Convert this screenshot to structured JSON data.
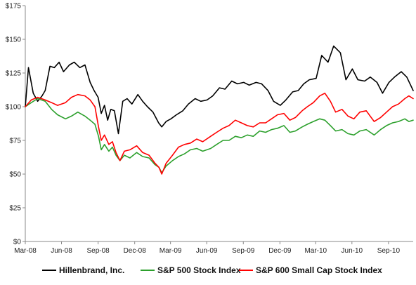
{
  "chart_data": {
    "type": "line",
    "title": "",
    "xlabel": "",
    "ylabel": "",
    "ylim": [
      0,
      175
    ],
    "y_ticks": [
      0,
      25,
      50,
      75,
      100,
      125,
      150,
      175
    ],
    "y_tick_labels": [
      "$0",
      "$25",
      "$50",
      "$75",
      "$100",
      "$125",
      "$150",
      "$175"
    ],
    "x_ticks": [
      "Mar-08",
      "Jun-08",
      "Sep-08",
      "Dec-08",
      "Mar-09",
      "Jun-09",
      "Sep-09",
      "Dec-09",
      "Mar-10",
      "Jun-10",
      "Sep-10"
    ],
    "xlim": [
      "2008-03-31",
      "2010-12-01"
    ],
    "grid": false,
    "legend_position": "bottom",
    "series": [
      {
        "name": "Hillenbrand, Inc.",
        "color": "#000000",
        "x": [
          "2008-03-31",
          "2008-04-08",
          "2008-04-20",
          "2008-05-01",
          "2008-05-12",
          "2008-05-20",
          "2008-06-01",
          "2008-06-12",
          "2008-06-24",
          "2008-07-05",
          "2008-07-20",
          "2008-08-01",
          "2008-08-15",
          "2008-08-28",
          "2008-09-10",
          "2008-09-20",
          "2008-09-30",
          "2008-10-08",
          "2008-10-16",
          "2008-10-24",
          "2008-11-01",
          "2008-11-10",
          "2008-11-20",
          "2008-12-01",
          "2008-12-12",
          "2008-12-24",
          "2009-01-08",
          "2009-01-20",
          "2009-02-01",
          "2009-02-15",
          "2009-03-01",
          "2009-03-09",
          "2009-03-20",
          "2009-04-01",
          "2009-04-15",
          "2009-05-01",
          "2009-05-15",
          "2009-06-01",
          "2009-06-15",
          "2009-07-01",
          "2009-07-15",
          "2009-08-01",
          "2009-08-15",
          "2009-09-01",
          "2009-09-15",
          "2009-10-01",
          "2009-10-15",
          "2009-11-01",
          "2009-11-15",
          "2009-12-01",
          "2009-12-15",
          "2010-01-01",
          "2010-01-15",
          "2010-02-01",
          "2010-02-15",
          "2010-03-01",
          "2010-03-15",
          "2010-04-01",
          "2010-04-15",
          "2010-05-01",
          "2010-05-15",
          "2010-06-01",
          "2010-06-15",
          "2010-07-01",
          "2010-07-15",
          "2010-08-01",
          "2010-08-15",
          "2010-09-01",
          "2010-09-15",
          "2010-10-01",
          "2010-10-15",
          "2010-11-01",
          "2010-11-15",
          "2010-12-01"
        ],
        "values": [
          100,
          129,
          110,
          104,
          108,
          112,
          130,
          129,
          133,
          126,
          131,
          133,
          129,
          131,
          118,
          112,
          107,
          95,
          101,
          90,
          98,
          97,
          80,
          104,
          106,
          102,
          109,
          104,
          100,
          96,
          88,
          85,
          89,
          91,
          94,
          97,
          102,
          106,
          104,
          105,
          108,
          114,
          113,
          119,
          117,
          118,
          116,
          118,
          117,
          112,
          104,
          101,
          105,
          111,
          112,
          117,
          120,
          121,
          138,
          133,
          145,
          140,
          120,
          128,
          120,
          119,
          122,
          118,
          110,
          118,
          122,
          126,
          122,
          112
        ]
      },
      {
        "name": "S&P 500 Stock Index",
        "color": "#2ca02c",
        "x": [
          "2008-03-31",
          "2008-04-15",
          "2008-05-01",
          "2008-05-20",
          "2008-06-05",
          "2008-06-20",
          "2008-07-10",
          "2008-07-25",
          "2008-08-10",
          "2008-08-28",
          "2008-09-10",
          "2008-09-22",
          "2008-10-01",
          "2008-10-08",
          "2008-10-16",
          "2008-10-27",
          "2008-11-05",
          "2008-11-14",
          "2008-11-24",
          "2008-12-05",
          "2008-12-19",
          "2009-01-05",
          "2009-01-20",
          "2009-02-05",
          "2009-02-20",
          "2009-03-02",
          "2009-03-09",
          "2009-03-20",
          "2009-04-05",
          "2009-04-20",
          "2009-05-05",
          "2009-05-20",
          "2009-06-05",
          "2009-06-20",
          "2009-07-10",
          "2009-07-25",
          "2009-08-10",
          "2009-08-25",
          "2009-09-10",
          "2009-09-25",
          "2009-10-10",
          "2009-10-25",
          "2009-11-10",
          "2009-11-25",
          "2009-12-10",
          "2009-12-25",
          "2010-01-10",
          "2010-01-25",
          "2010-02-08",
          "2010-02-25",
          "2010-03-10",
          "2010-03-25",
          "2010-04-10",
          "2010-04-23",
          "2010-05-07",
          "2010-05-20",
          "2010-06-05",
          "2010-06-20",
          "2010-07-05",
          "2010-07-20",
          "2010-08-05",
          "2010-08-25",
          "2010-09-10",
          "2010-09-25",
          "2010-10-10",
          "2010-10-25",
          "2010-11-10",
          "2010-11-20",
          "2010-12-01"
        ],
        "values": [
          100,
          103,
          106,
          104,
          98,
          94,
          91,
          93,
          96,
          93,
          90,
          87,
          78,
          68,
          72,
          67,
          70,
          64,
          60,
          64,
          62,
          66,
          63,
          62,
          57,
          55,
          51,
          56,
          60,
          63,
          65,
          68,
          69,
          67,
          69,
          72,
          75,
          75,
          78,
          77,
          79,
          78,
          82,
          81,
          83,
          84,
          86,
          81,
          82,
          85,
          87,
          89,
          91,
          90,
          86,
          82,
          83,
          80,
          79,
          82,
          83,
          79,
          83,
          86,
          88,
          89,
          91,
          89,
          90
        ]
      },
      {
        "name": "S&P 600 Small Cap Stock Index",
        "color": "#ff0000",
        "x": [
          "2008-03-31",
          "2008-04-15",
          "2008-05-01",
          "2008-05-20",
          "2008-06-05",
          "2008-06-20",
          "2008-07-10",
          "2008-07-25",
          "2008-08-10",
          "2008-08-28",
          "2008-09-10",
          "2008-09-22",
          "2008-10-01",
          "2008-10-08",
          "2008-10-16",
          "2008-10-27",
          "2008-11-05",
          "2008-11-14",
          "2008-11-24",
          "2008-12-05",
          "2008-12-19",
          "2009-01-05",
          "2009-01-20",
          "2009-02-05",
          "2009-02-20",
          "2009-03-02",
          "2009-03-09",
          "2009-03-20",
          "2009-04-05",
          "2009-04-20",
          "2009-05-05",
          "2009-05-20",
          "2009-06-05",
          "2009-06-20",
          "2009-07-10",
          "2009-07-25",
          "2009-08-10",
          "2009-08-25",
          "2009-09-10",
          "2009-09-25",
          "2009-10-10",
          "2009-10-25",
          "2009-11-10",
          "2009-11-25",
          "2009-12-10",
          "2009-12-25",
          "2010-01-10",
          "2010-01-25",
          "2010-02-08",
          "2010-02-25",
          "2010-03-10",
          "2010-03-25",
          "2010-04-10",
          "2010-04-23",
          "2010-05-07",
          "2010-05-20",
          "2010-06-05",
          "2010-06-20",
          "2010-07-05",
          "2010-07-20",
          "2010-08-05",
          "2010-08-25",
          "2010-09-10",
          "2010-09-25",
          "2010-10-10",
          "2010-10-25",
          "2010-11-10",
          "2010-11-20",
          "2010-12-01"
        ],
        "values": [
          100,
          105,
          107,
          105,
          103,
          101,
          103,
          107,
          109,
          108,
          105,
          100,
          85,
          75,
          79,
          72,
          74,
          66,
          60,
          67,
          68,
          71,
          66,
          64,
          58,
          55,
          50,
          58,
          64,
          70,
          72,
          73,
          76,
          74,
          78,
          81,
          84,
          86,
          90,
          88,
          86,
          85,
          88,
          88,
          91,
          94,
          95,
          90,
          92,
          97,
          100,
          103,
          108,
          110,
          104,
          96,
          98,
          93,
          91,
          96,
          97,
          89,
          92,
          96,
          100,
          102,
          106,
          108,
          106
        ]
      }
    ]
  }
}
